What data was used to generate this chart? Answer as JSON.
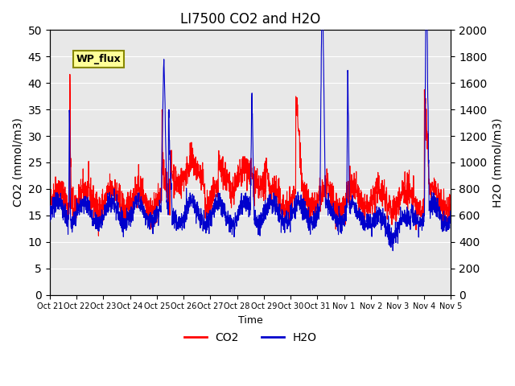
{
  "title": "LI7500 CO2 and H2O",
  "xlabel": "Time",
  "ylabel_left": "CO2 (mmol/m3)",
  "ylabel_right": "H2O (mmol/m3)",
  "co2_color": "#FF0000",
  "h2o_color": "#0000CC",
  "background_color": "#E8E8E8",
  "ylim_left": [
    0,
    50
  ],
  "ylim_right": [
    0,
    2000
  ],
  "yticks_left": [
    0,
    5,
    10,
    15,
    20,
    25,
    30,
    35,
    40,
    45,
    50
  ],
  "yticks_right": [
    0,
    200,
    400,
    600,
    800,
    1000,
    1200,
    1400,
    1600,
    1800,
    2000
  ],
  "xtick_labels": [
    "Oct 21",
    "Oct 22",
    "Oct 23",
    "Oct 24",
    "Oct 25",
    "Oct 26",
    "Oct 27",
    "Oct 28",
    "Oct 29",
    "Oct 30",
    "Oct 31",
    "Nov 1",
    "Nov 2",
    "Nov 3",
    "Nov 4",
    "Nov 5"
  ],
  "annotation_text": "WP_flux",
  "figsize": [
    6.4,
    4.8
  ],
  "dpi": 100,
  "legend_entries": [
    "CO2",
    "H2O"
  ],
  "legend_colors": [
    "#FF0000",
    "#0000CC"
  ],
  "grid_color": "white",
  "title_fontsize": 12
}
